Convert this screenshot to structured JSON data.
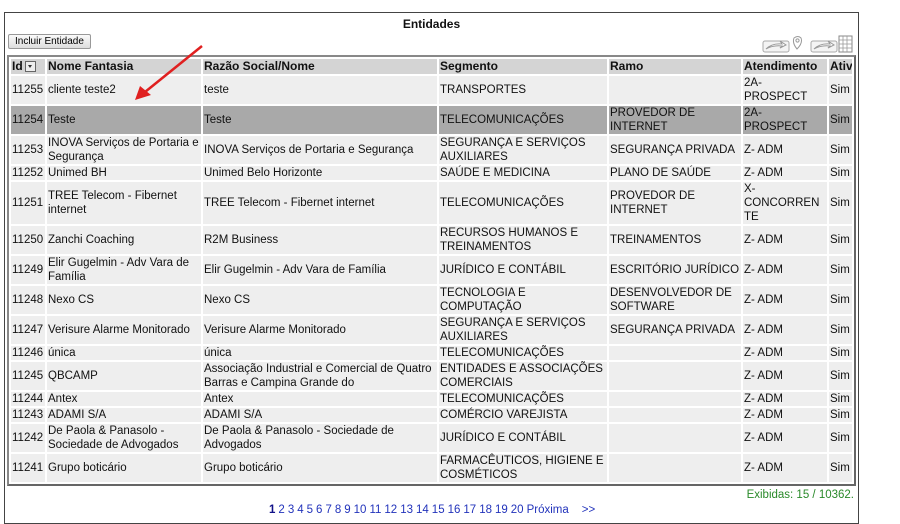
{
  "title": "Entidades",
  "toolbar": {
    "add_label": "Incluir Entidade",
    "icons": [
      "export-map-icon",
      "export-spreadsheet-icon"
    ]
  },
  "columns": [
    "Id",
    "Nome Fantasia",
    "Razão Social/Nome",
    "Segmento",
    "Ramo",
    "Atendimento",
    "Ativo"
  ],
  "selected_id": "11254",
  "rows": [
    {
      "id": "11255",
      "nome": "cliente teste2",
      "razao": "teste",
      "segmento": "TRANSPORTES",
      "ramo": "",
      "atendimento": "2A- PROSPECT",
      "ativo": "Sim"
    },
    {
      "id": "11254",
      "nome": "Teste",
      "razao": "Teste",
      "segmento": "TELECOMUNICAÇÕES",
      "ramo": "PROVEDOR DE INTERNET",
      "atendimento": "2A- PROSPECT",
      "ativo": "Sim"
    },
    {
      "id": "11253",
      "nome": "INOVA Serviços de Portaria e Segurança",
      "razao": "INOVA Serviços de Portaria e Segurança",
      "segmento": "SEGURANÇA E SERVIÇOS AUXILIARES",
      "ramo": "SEGURANÇA PRIVADA",
      "atendimento": "Z- ADM",
      "ativo": "Sim"
    },
    {
      "id": "11252",
      "nome": "Unimed BH",
      "razao": "Unimed Belo Horizonte",
      "segmento": "SAÚDE E MEDICINA",
      "ramo": "PLANO DE SAÚDE",
      "atendimento": "Z- ADM",
      "ativo": "Sim"
    },
    {
      "id": "11251",
      "nome": "TREE Telecom - Fibernet internet",
      "razao": "TREE Telecom - Fibernet internet",
      "segmento": "TELECOMUNICAÇÕES",
      "ramo": "PROVEDOR DE INTERNET",
      "atendimento": "X- CONCORRENTE",
      "ativo": "Sim"
    },
    {
      "id": "11250",
      "nome": "Zanchi Coaching",
      "razao": "R2M Business",
      "segmento": "RECURSOS HUMANOS E TREINAMENTOS",
      "ramo": "TREINAMENTOS",
      "atendimento": "Z- ADM",
      "ativo": "Sim"
    },
    {
      "id": "11249",
      "nome": "Elir Gugelmin - Adv Vara de Família",
      "razao": "Elir Gugelmin - Adv Vara de Família",
      "segmento": "JURÍDICO E CONTÁBIL",
      "ramo": "ESCRITÓRIO JURÍDICO",
      "atendimento": "Z- ADM",
      "ativo": "Sim"
    },
    {
      "id": "11248",
      "nome": "Nexo CS",
      "razao": "Nexo CS",
      "segmento": "TECNOLOGIA E COMPUTAÇÃO",
      "ramo": "DESENVOLVEDOR DE SOFTWARE",
      "atendimento": "Z- ADM",
      "ativo": "Sim"
    },
    {
      "id": "11247",
      "nome": "Verisure Alarme Monitorado",
      "razao": "Verisure Alarme Monitorado",
      "segmento": "SEGURANÇA E SERVIÇOS AUXILIARES",
      "ramo": "SEGURANÇA PRIVADA",
      "atendimento": "Z- ADM",
      "ativo": "Sim"
    },
    {
      "id": "11246",
      "nome": "única",
      "razao": "única",
      "segmento": "TELECOMUNICAÇÕES",
      "ramo": "",
      "atendimento": "Z- ADM",
      "ativo": "Sim"
    },
    {
      "id": "11245",
      "nome": "QBCAMP",
      "razao": "Associação Industrial e Comercial de Quatro Barras e Campina Grande do",
      "segmento": "ENTIDADES E ASSOCIAÇÕES COMERCIAIS",
      "ramo": "",
      "atendimento": "Z- ADM",
      "ativo": "Sim"
    },
    {
      "id": "11244",
      "nome": "Antex",
      "razao": "Antex",
      "segmento": "TELECOMUNICAÇÕES",
      "ramo": "",
      "atendimento": "Z- ADM",
      "ativo": "Sim"
    },
    {
      "id": "11243",
      "nome": "ADAMI S/A",
      "razao": "ADAMI S/A",
      "segmento": "COMÉRCIO VAREJISTA",
      "ramo": "",
      "atendimento": "Z- ADM",
      "ativo": "Sim"
    },
    {
      "id": "11242",
      "nome": "De Paola & Panasolo - Sociedade de Advogados",
      "razao": "De Paola & Panasolo - Sociedade de Advogados",
      "segmento": "JURÍDICO E CONTÁBIL",
      "ramo": "",
      "atendimento": "Z- ADM",
      "ativo": "Sim"
    },
    {
      "id": "11241",
      "nome": "Grupo boticário",
      "razao": "Grupo boticário",
      "segmento": "FARMACÊUTICOS, HIGIENE E COSMÉTICOS",
      "ramo": "",
      "atendimento": "Z- ADM",
      "ativo": "Sim"
    }
  ],
  "footer": {
    "count": "Exibidas: 15 / 10362."
  },
  "pagination": {
    "pages": [
      "1",
      "2",
      "3",
      "4",
      "5",
      "6",
      "7",
      "8",
      "9",
      "10",
      "11",
      "12",
      "13",
      "14",
      "15",
      "16",
      "17",
      "18",
      "19",
      "20"
    ],
    "current": "1",
    "next": "Próxima",
    "last": ">>"
  },
  "colors": {
    "selected_row": "#a9a9a9",
    "header": "#d4d4d4",
    "row": "#eeeeee",
    "count_text": "#2a8a2a",
    "link": "#2233bb",
    "annotation_arrow": "#e02020"
  }
}
